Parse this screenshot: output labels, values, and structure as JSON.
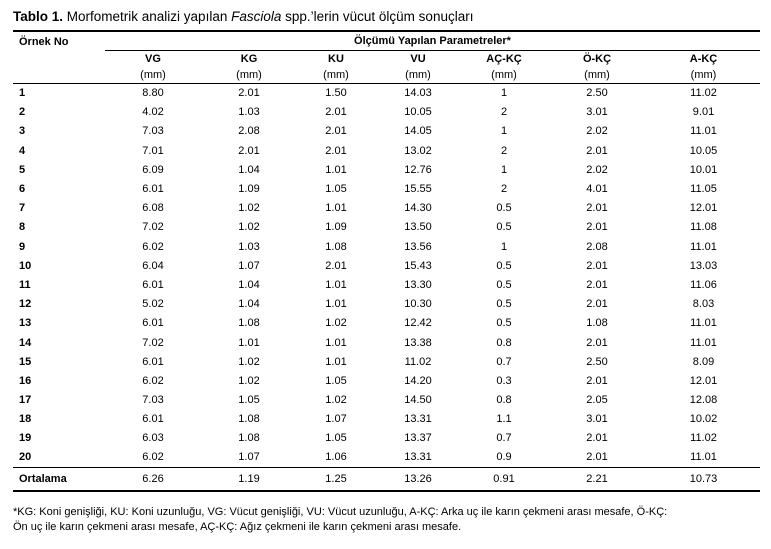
{
  "caption": {
    "label": "Tablo 1.",
    "text_before": " Morfometrik analizi yapılan ",
    "italic": "Fasciola",
    "text_after": " spp.’lerin vücut ölçüm sonuçları"
  },
  "header": {
    "row_label": "Örnek No",
    "group_label": "Ölçümü Yapılan Parametreler*",
    "columns": [
      {
        "name": "VG",
        "unit": "(mm)"
      },
      {
        "name": "KG",
        "unit": "(mm)"
      },
      {
        "name": "KU",
        "unit": "(mm)"
      },
      {
        "name": "VU",
        "unit": "(mm)"
      },
      {
        "name": "AÇ-KÇ",
        "unit": "(mm)"
      },
      {
        "name": "Ö-KÇ",
        "unit": "(mm)"
      },
      {
        "name": "A-KÇ",
        "unit": "(mm)"
      }
    ]
  },
  "rows": [
    [
      "1",
      "8.80",
      "2.01",
      "1.50",
      "14.03",
      "1",
      "2.50",
      "11.02"
    ],
    [
      "2",
      "4.02",
      "1.03",
      "2.01",
      "10.05",
      "2",
      "3.01",
      "9.01"
    ],
    [
      "3",
      "7.03",
      "2.08",
      "2.01",
      "14.05",
      "1",
      "2.02",
      "11.01"
    ],
    [
      "4",
      "7.01",
      "2.01",
      "2.01",
      "13.02",
      "2",
      "2.01",
      "10.05"
    ],
    [
      "5",
      "6.09",
      "1.04",
      "1.01",
      "12.76",
      "1",
      "2.02",
      "10.01"
    ],
    [
      "6",
      "6.01",
      "1.09",
      "1.05",
      "15.55",
      "2",
      "4.01",
      "11.05"
    ],
    [
      "7",
      "6.08",
      "1.02",
      "1.01",
      "14.30",
      "0.5",
      "2.01",
      "12.01"
    ],
    [
      "8",
      "7.02",
      "1.02",
      "1.09",
      "13.50",
      "0.5",
      "2.01",
      "11.08"
    ],
    [
      "9",
      "6.02",
      "1.03",
      "1.08",
      "13.56",
      "1",
      "2.08",
      "11.01"
    ],
    [
      "10",
      "6.04",
      "1.07",
      "2.01",
      "15.43",
      "0.5",
      "2.01",
      "13.03"
    ],
    [
      "11",
      "6.01",
      "1.04",
      "1.01",
      "13.30",
      "0.5",
      "2.01",
      "11.06"
    ],
    [
      "12",
      "5.02",
      "1.04",
      "1.01",
      "10.30",
      "0.5",
      "2.01",
      "8.03"
    ],
    [
      "13",
      "6.01",
      "1.08",
      "1.02",
      "12.42",
      "0.5",
      "1.08",
      "11.01"
    ],
    [
      "14",
      "7.02",
      "1.01",
      "1.01",
      "13.38",
      "0.8",
      "2.01",
      "11.01"
    ],
    [
      "15",
      "6.01",
      "1.02",
      "1.01",
      "11.02",
      "0.7",
      "2.50",
      "8.09"
    ],
    [
      "16",
      "6.02",
      "1.02",
      "1.05",
      "14.20",
      "0.3",
      "2.01",
      "12.01"
    ],
    [
      "17",
      "7.03",
      "1.05",
      "1.02",
      "14.50",
      "0.8",
      "2.05",
      "12.08"
    ],
    [
      "18",
      "6.01",
      "1.08",
      "1.07",
      "13.31",
      "1.1",
      "3.01",
      "10.02"
    ],
    [
      "19",
      "6.03",
      "1.08",
      "1.05",
      "13.37",
      "0.7",
      "2.01",
      "11.02"
    ],
    [
      "20",
      "6.02",
      "1.07",
      "1.06",
      "13.31",
      "0.9",
      "2.01",
      "11.01"
    ]
  ],
  "summary": [
    "Ortalama",
    "6.26",
    "1.19",
    "1.25",
    "13.26",
    "0.91",
    "2.21",
    "10.73"
  ],
  "footnote": {
    "line1": "*KG: Koni genişliği, KU: Koni uzunluğu, VG: Vücut genişliği, VU: Vücut uzunluğu, A-KÇ: Arka uç ile karın çekmeni arası mesafe, Ö-KÇ:",
    "line2": "Ön uç ile karın çekmeni arası mesafe, AÇ-KÇ: Ağız çekmeni ile karın çekmeni arası mesafe."
  }
}
